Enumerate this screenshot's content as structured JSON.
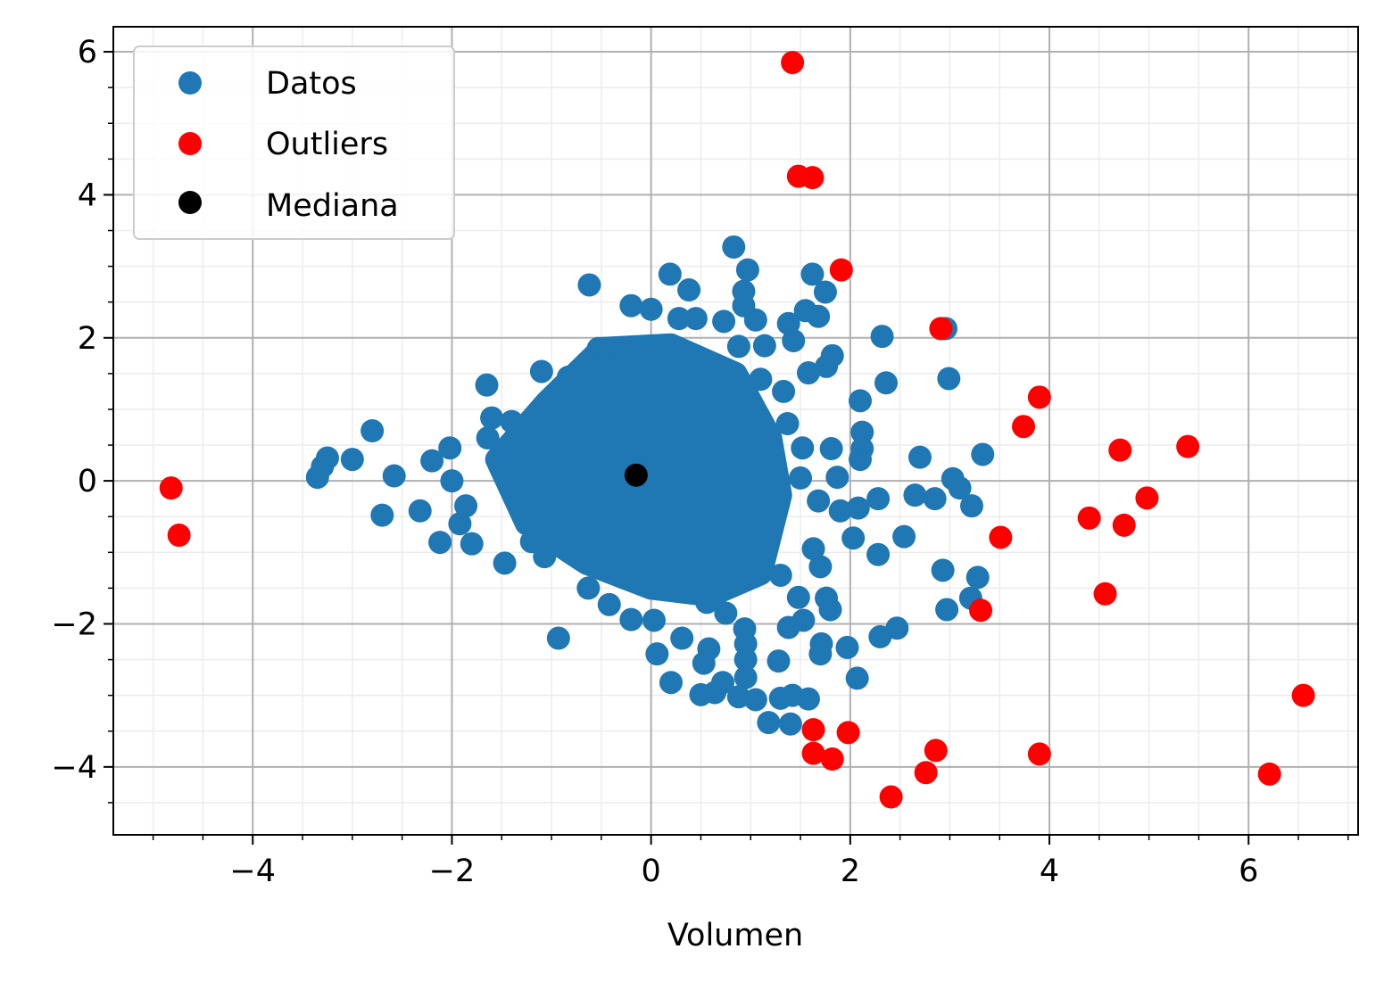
{
  "chart_data": {
    "type": "scatter",
    "xlabel": "Volumen",
    "ylabel": "",
    "xlim": [
      -5.4,
      7.1
    ],
    "ylim": [
      -4.95,
      6.35
    ],
    "x_ticks": [
      -4,
      -2,
      0,
      2,
      4,
      6
    ],
    "y_ticks": [
      -4,
      -2,
      0,
      2,
      4,
      6
    ],
    "minor_grid_step": 0.5,
    "grid": true,
    "legend_position": "upper-left",
    "series": [
      {
        "name": "Datos",
        "color": "#1f77b4",
        "cluster_center": [
          -0.1,
          0.1
        ],
        "outline": [
          [
            0.83,
            3.27
          ],
          [
            0.97,
            2.95
          ],
          [
            0.19,
            2.89
          ],
          [
            -0.62,
            2.74
          ],
          [
            0.38,
            2.67
          ],
          [
            0.93,
            2.65
          ],
          [
            -0.2,
            2.45
          ],
          [
            0.0,
            2.4
          ],
          [
            0.93,
            2.45
          ],
          [
            1.62,
            2.89
          ],
          [
            1.75,
            2.64
          ],
          [
            1.55,
            2.38
          ],
          [
            1.68,
            2.3
          ],
          [
            1.38,
            2.2
          ],
          [
            1.05,
            2.25
          ],
          [
            0.73,
            2.23
          ],
          [
            0.45,
            2.27
          ],
          [
            0.28,
            2.27
          ],
          [
            1.43,
            1.96
          ],
          [
            1.14,
            1.89
          ],
          [
            0.88,
            1.88
          ],
          [
            -0.53,
            1.85
          ],
          [
            1.82,
            1.75
          ],
          [
            1.76,
            1.6
          ],
          [
            1.58,
            1.51
          ],
          [
            1.1,
            1.42
          ],
          [
            1.33,
            1.25
          ],
          [
            2.32,
            2.02
          ],
          [
            2.36,
            1.37
          ],
          [
            2.1,
            1.12
          ],
          [
            2.96,
            2.13
          ],
          [
            2.99,
            1.43
          ],
          [
            3.33,
            0.37
          ],
          [
            2.7,
            0.33
          ],
          [
            3.03,
            0.03
          ],
          [
            3.1,
            -0.1
          ],
          [
            2.85,
            -0.25
          ],
          [
            2.65,
            -0.2
          ],
          [
            3.22,
            -0.35
          ],
          [
            3.28,
            -1.35
          ],
          [
            3.21,
            -1.64
          ],
          [
            2.97,
            -1.8
          ],
          [
            2.93,
            -1.25
          ],
          [
            2.54,
            -0.78
          ],
          [
            2.47,
            -2.06
          ],
          [
            2.3,
            -2.18
          ],
          [
            2.28,
            -1.03
          ],
          [
            2.28,
            -0.25
          ],
          [
            2.12,
            0.68
          ],
          [
            2.12,
            0.45
          ],
          [
            2.1,
            0.3
          ],
          [
            2.08,
            -0.38
          ],
          [
            2.07,
            -2.76
          ],
          [
            1.97,
            -2.33
          ],
          [
            1.9,
            -0.42
          ],
          [
            2.03,
            -0.8
          ],
          [
            1.87,
            0.05
          ],
          [
            1.81,
            0.45
          ],
          [
            1.8,
            -1.8
          ],
          [
            1.76,
            -1.64
          ],
          [
            1.7,
            -1.2
          ],
          [
            1.63,
            -0.95
          ],
          [
            1.68,
            -0.28
          ],
          [
            1.52,
            0.46
          ],
          [
            1.5,
            0.04
          ],
          [
            1.37,
            0.8
          ],
          [
            1.71,
            -2.28
          ],
          [
            1.7,
            -2.42
          ],
          [
            1.53,
            -1.95
          ],
          [
            1.48,
            -1.63
          ],
          [
            1.38,
            -2.05
          ],
          [
            1.3,
            -1.32
          ],
          [
            1.28,
            -2.52
          ],
          [
            1.18,
            -3.38
          ],
          [
            1.4,
            -3.4
          ],
          [
            1.3,
            -3.04
          ],
          [
            1.42,
            -3.0
          ],
          [
            1.58,
            -3.05
          ],
          [
            1.05,
            -3.06
          ],
          [
            0.88,
            -3.02
          ],
          [
            0.72,
            -2.82
          ],
          [
            0.64,
            -2.96
          ],
          [
            0.5,
            -2.99
          ],
          [
            0.53,
            -2.55
          ],
          [
            0.95,
            -2.28
          ],
          [
            0.95,
            -2.5
          ],
          [
            0.95,
            -2.75
          ],
          [
            0.94,
            -2.07
          ],
          [
            0.75,
            -1.85
          ],
          [
            0.56,
            -1.7
          ],
          [
            0.58,
            -2.35
          ],
          [
            0.31,
            -2.2
          ],
          [
            0.2,
            -2.82
          ],
          [
            0.06,
            -2.42
          ],
          [
            0.03,
            -1.95
          ],
          [
            -0.2,
            -1.94
          ],
          [
            -0.93,
            -2.2
          ],
          [
            -0.42,
            -1.73
          ],
          [
            -0.63,
            -1.5
          ],
          [
            -1.07,
            -1.06
          ],
          [
            -1.47,
            -1.15
          ],
          [
            -1.2,
            -0.85
          ],
          [
            -1.8,
            -0.88
          ],
          [
            -1.92,
            -0.6
          ],
          [
            -2.12,
            -0.86
          ],
          [
            -2.32,
            -0.42
          ],
          [
            -2.7,
            -0.48
          ],
          [
            -2.58,
            0.07
          ],
          [
            -2.2,
            0.28
          ],
          [
            -2.02,
            0.46
          ],
          [
            -2.0,
            0.0
          ],
          [
            -1.86,
            -0.35
          ],
          [
            -2.8,
            0.7
          ],
          [
            -3.0,
            0.3
          ],
          [
            -3.25,
            0.32
          ],
          [
            -3.35,
            0.05
          ],
          [
            -3.3,
            0.2
          ],
          [
            -1.64,
            0.6
          ],
          [
            -1.6,
            0.88
          ],
          [
            -1.65,
            1.34
          ],
          [
            -1.4,
            0.83
          ],
          [
            -1.1,
            1.53
          ],
          [
            -0.83,
            1.45
          ]
        ]
      },
      {
        "name": "Outliers",
        "color": "#ff0000",
        "points": [
          [
            1.42,
            5.85
          ],
          [
            1.48,
            4.26
          ],
          [
            1.62,
            4.24
          ],
          [
            1.91,
            2.95
          ],
          [
            2.91,
            2.13
          ],
          [
            3.9,
            1.17
          ],
          [
            3.74,
            0.76
          ],
          [
            4.71,
            0.43
          ],
          [
            5.39,
            0.48
          ],
          [
            4.98,
            -0.24
          ],
          [
            4.4,
            -0.52
          ],
          [
            4.75,
            -0.62
          ],
          [
            3.51,
            -0.79
          ],
          [
            4.56,
            -1.58
          ],
          [
            3.31,
            -1.81
          ],
          [
            -4.82,
            -0.1
          ],
          [
            -4.74,
            -0.76
          ],
          [
            1.63,
            -3.48
          ],
          [
            1.98,
            -3.52
          ],
          [
            1.63,
            -3.81
          ],
          [
            1.82,
            -3.89
          ],
          [
            2.86,
            -3.77
          ],
          [
            2.76,
            -4.08
          ],
          [
            3.9,
            -3.82
          ],
          [
            2.41,
            -4.42
          ],
          [
            6.21,
            -4.1
          ],
          [
            6.55,
            -3.0
          ]
        ]
      },
      {
        "name": "Mediana",
        "color": "#000000",
        "points": [
          [
            -0.15,
            0.08
          ]
        ]
      }
    ]
  }
}
